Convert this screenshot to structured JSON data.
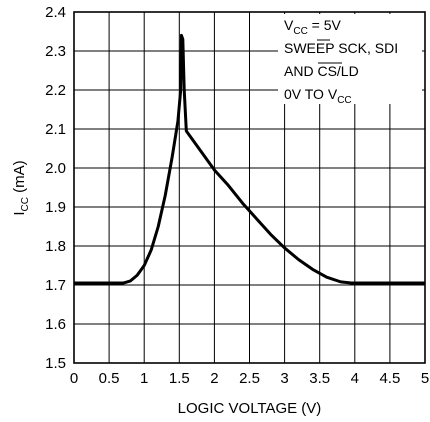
{
  "chart_data": {
    "type": "line",
    "xlabel": "LOGIC VOLTAGE (V)",
    "ylabel": "I",
    "ylabel_sub": "CC",
    "ylabel_unit": " (mA)",
    "xlim": [
      0,
      5
    ],
    "ylim": [
      1.5,
      2.4
    ],
    "xticks": [
      "0",
      "0.5",
      "1",
      "1.5",
      "2",
      "2.5",
      "3",
      "3.5",
      "4",
      "4.5",
      "5"
    ],
    "yticks": [
      "1.5",
      "1.6",
      "1.7",
      "1.8",
      "1.9",
      "2.0",
      "2.1",
      "2.2",
      "2.3",
      "2.4"
    ],
    "grid": true,
    "annotation": {
      "line1_main": "V",
      "line1_sub": "CC",
      "line1_rest": " = 5V",
      "line2_a": "SWEE",
      "line2_b": "P SCK, SDI",
      "line3_a": "AND ",
      "line3_b": "CS",
      "line3_c": "/LD",
      "line4_main": "0V TO V",
      "line4_sub": "CC"
    },
    "series": [
      {
        "x": [
          0,
          0.5,
          0.7,
          0.8,
          0.9,
          1.0,
          1.1,
          1.2,
          1.3,
          1.4,
          1.48,
          1.52,
          1.53,
          1.55,
          1.57,
          1.6,
          1.8,
          2.0,
          2.2,
          2.4,
          2.6,
          2.8,
          3.0,
          3.2,
          3.4,
          3.6,
          3.8,
          3.95,
          4.0,
          4.5,
          5.0
        ],
        "y": [
          1.705,
          1.705,
          1.705,
          1.71,
          1.725,
          1.75,
          1.79,
          1.85,
          1.93,
          2.03,
          2.12,
          2.2,
          2.34,
          2.33,
          2.2,
          2.095,
          2.045,
          1.995,
          1.955,
          1.91,
          1.87,
          1.83,
          1.795,
          1.765,
          1.74,
          1.72,
          1.708,
          1.705,
          1.705,
          1.705,
          1.705
        ]
      }
    ]
  }
}
